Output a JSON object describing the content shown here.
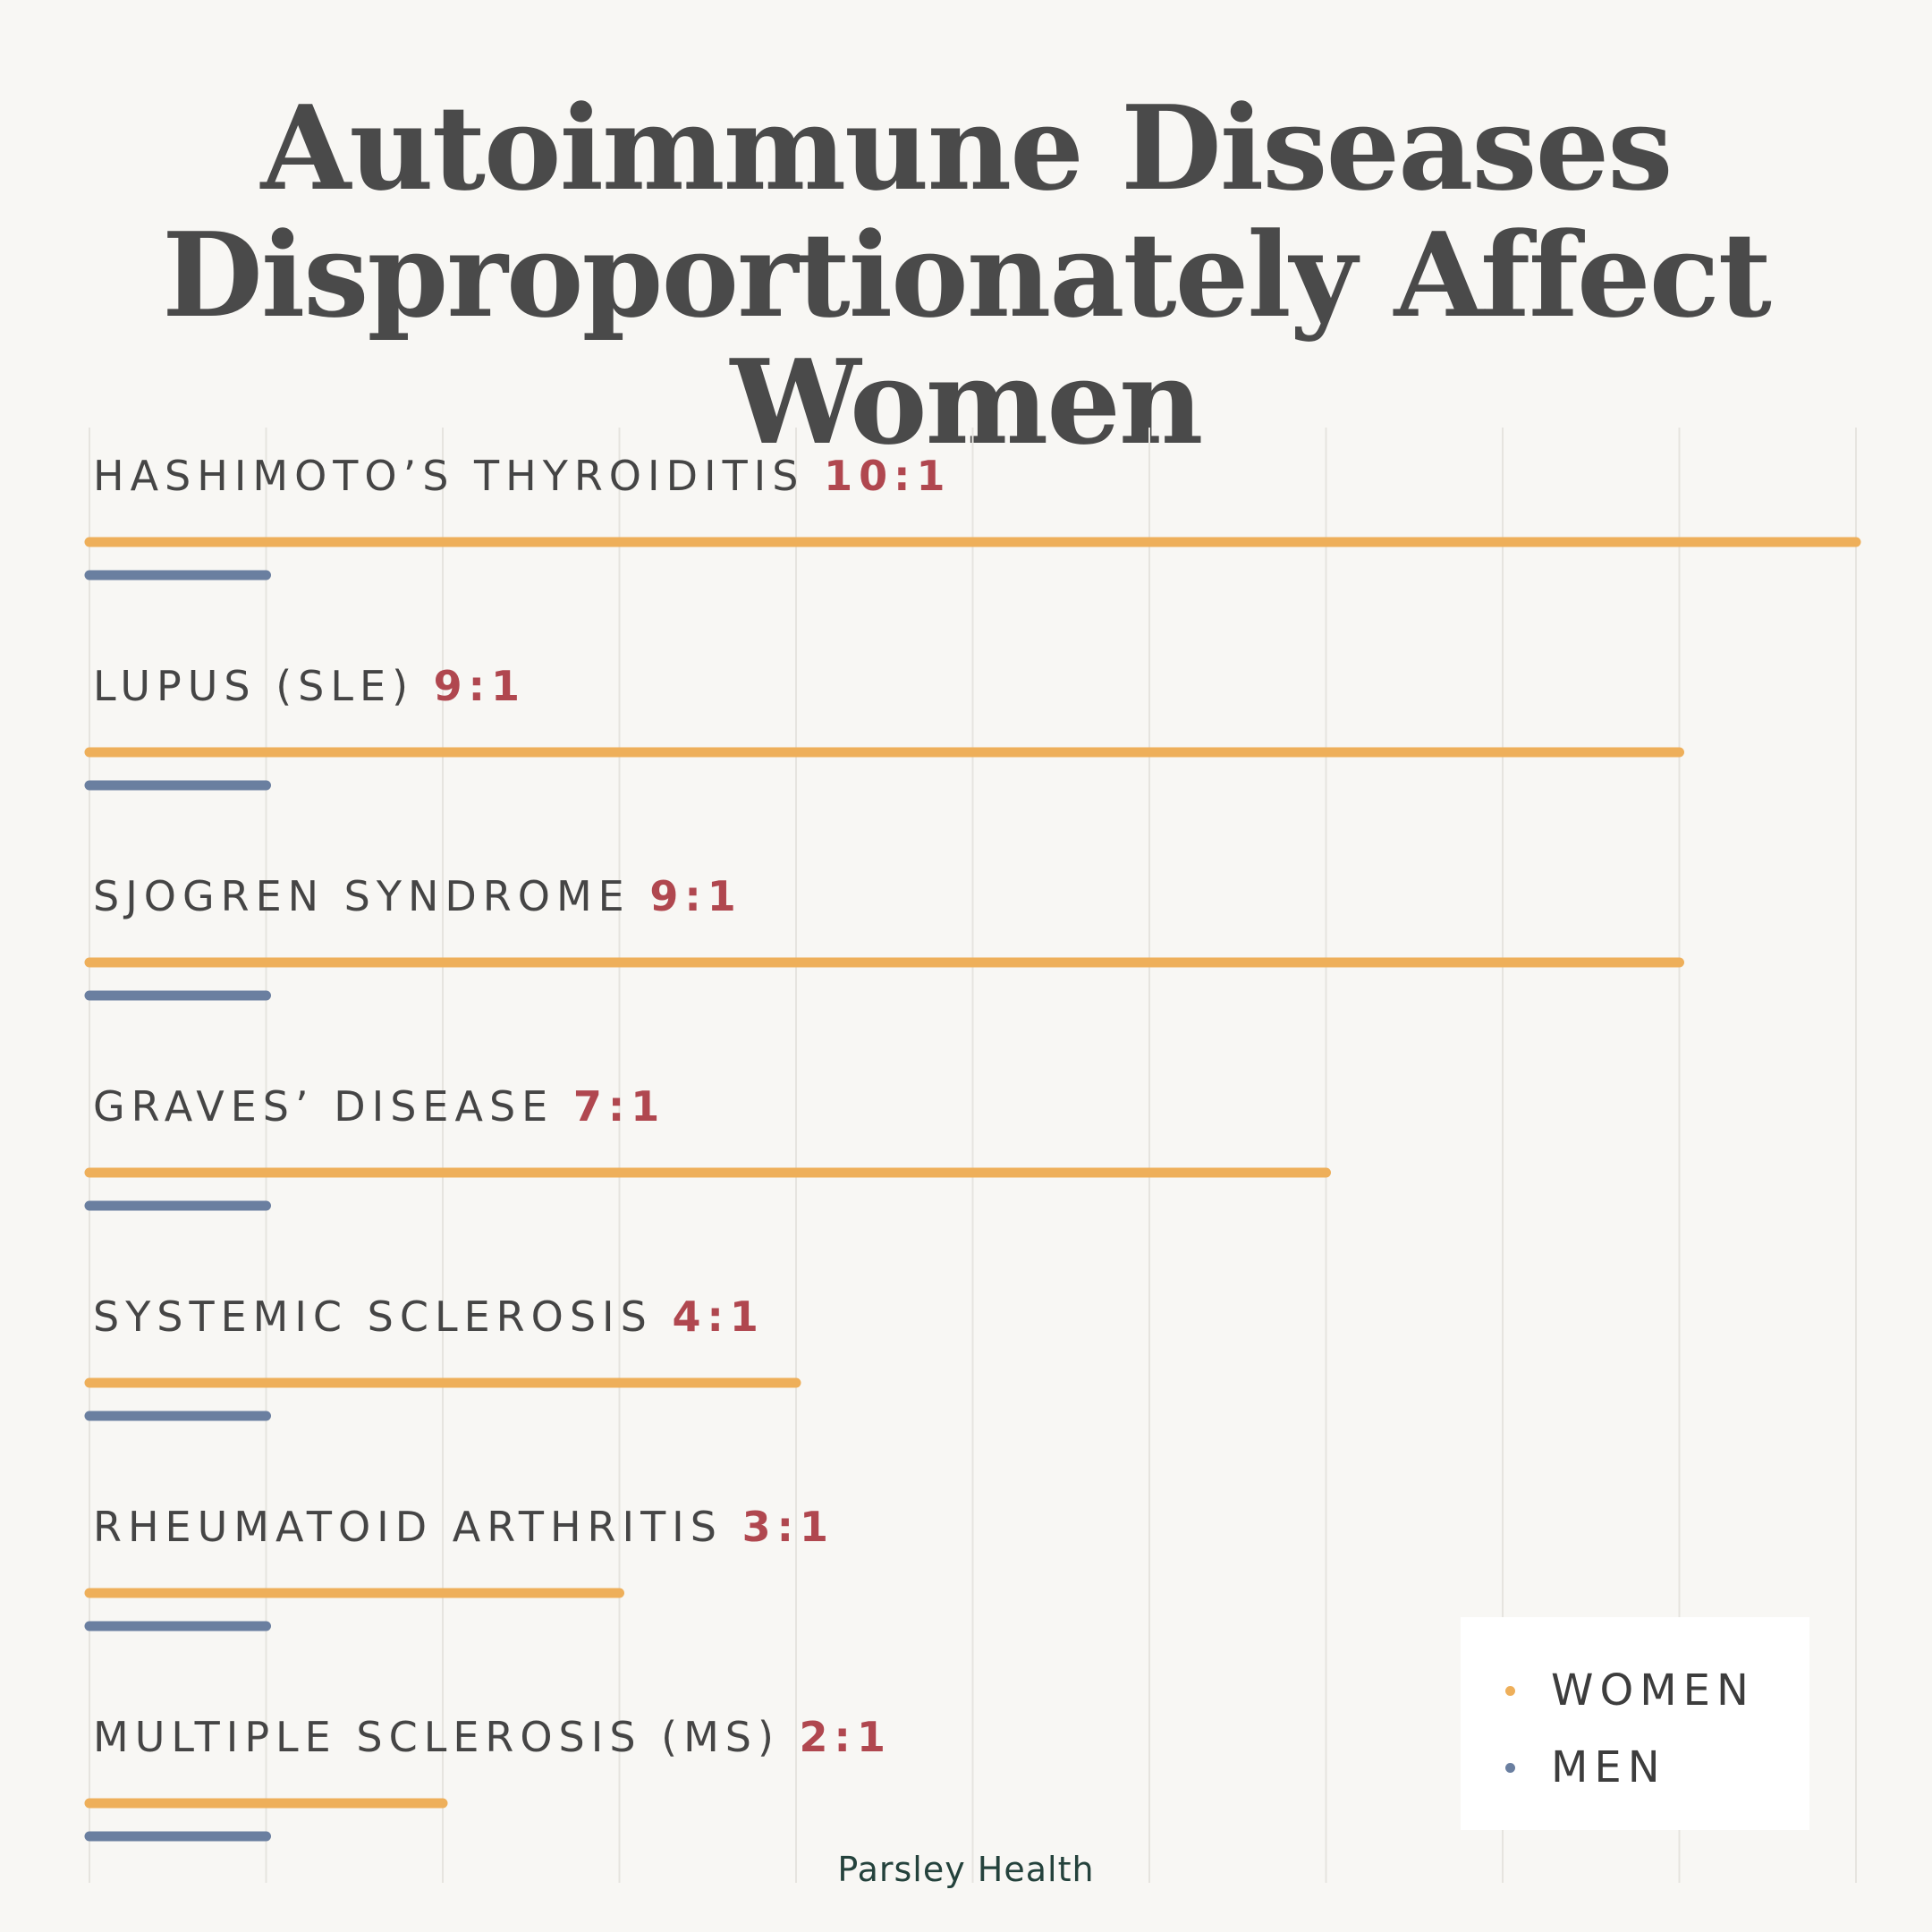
{
  "chart_data": {
    "type": "bar",
    "orientation": "horizontal",
    "title_lines": [
      "Autoimmune Diseases",
      "Disproportionately Affect Women"
    ],
    "categories": [
      {
        "label": "HASHIMOTO’S THYROIDITIS",
        "ratio": "10:1"
      },
      {
        "label": "LUPUS (SLE)",
        "ratio": "9:1"
      },
      {
        "label": "SJOGREN SYNDROME",
        "ratio": "9:1"
      },
      {
        "label": "GRAVES’ DISEASE",
        "ratio": "7:1"
      },
      {
        "label": "SYSTEMIC SCLEROSIS",
        "ratio": "4:1"
      },
      {
        "label": "RHEUMATOID ARTHRITIS",
        "ratio": "3:1"
      },
      {
        "label": "MULTIPLE SCLEROSIS (MS)",
        "ratio": "2:1"
      }
    ],
    "series": [
      {
        "name": "WOMEN",
        "color": "#eeaf5a",
        "values": [
          10,
          9,
          9,
          7,
          4,
          3,
          2
        ]
      },
      {
        "name": "MEN",
        "color": "#6a7fa0",
        "values": [
          1,
          1,
          1,
          1,
          1,
          1,
          1
        ]
      }
    ],
    "xlim": [
      0,
      10
    ],
    "grid": true,
    "legend": "bottom-right"
  },
  "legend": {
    "women_label": "WOMEN",
    "men_label": "MEN",
    "women_color": "#eeaf5a",
    "men_color": "#6a7fa0"
  },
  "brand": "Parsley Health"
}
